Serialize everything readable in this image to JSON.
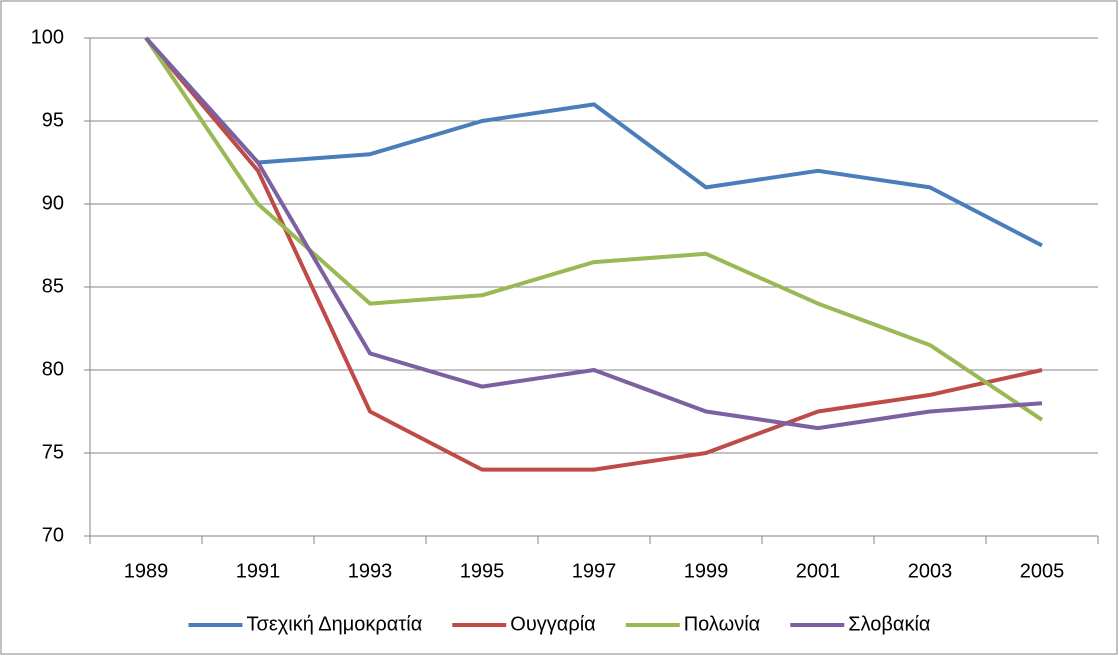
{
  "chart_data": {
    "type": "line",
    "categories": [
      "1989",
      "1991",
      "1993",
      "1995",
      "1997",
      "1999",
      "2001",
      "2003",
      "2005"
    ],
    "series": [
      {
        "name": "Τσεχική Δημοκρατία",
        "color": "#4a7ebb",
        "values": [
          100,
          92.5,
          93,
          95,
          96,
          91,
          92,
          91,
          87.5
        ]
      },
      {
        "name": "Ουγγαρία",
        "color": "#be4b48",
        "values": [
          100,
          92,
          77.5,
          74,
          74,
          75,
          77.5,
          78.5,
          80
        ]
      },
      {
        "name": "Πολωνία",
        "color": "#98b954",
        "values": [
          100,
          90,
          84,
          84.5,
          86.5,
          87,
          84,
          81.5,
          77
        ]
      },
      {
        "name": "Σλοβακία",
        "color": "#7d60a0",
        "values": [
          100,
          92.5,
          81,
          79,
          80,
          77.5,
          76.5,
          77.5,
          78
        ]
      }
    ],
    "ylim": [
      70,
      100
    ],
    "yticks": [
      70,
      75,
      80,
      85,
      90,
      95,
      100
    ],
    "grid": true,
    "legend": "bottom"
  }
}
